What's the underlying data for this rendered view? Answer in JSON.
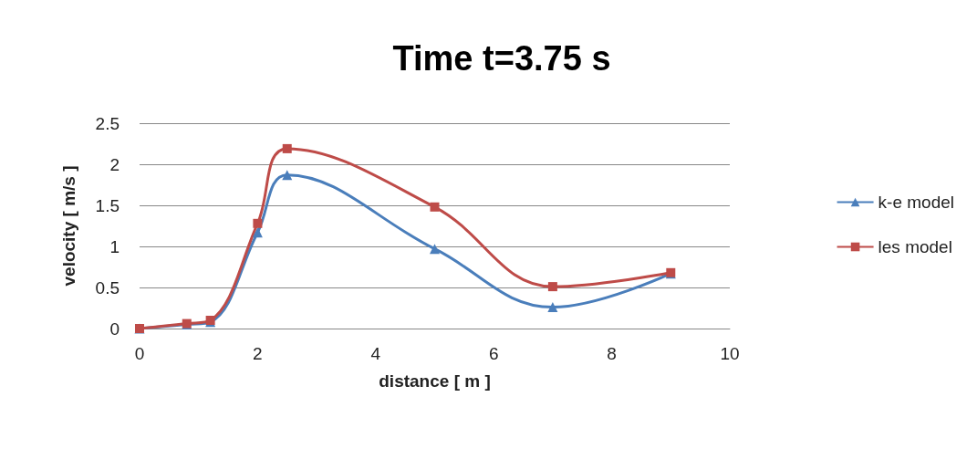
{
  "chart_data": {
    "type": "line",
    "title": "Time t=3.75 s",
    "xlabel": "distance [ m ]",
    "ylabel": "velocity [ m/s ]",
    "x": [
      0,
      0.8,
      1.2,
      2,
      2.5,
      5,
      7,
      9
    ],
    "series": [
      {
        "name": "k-e model",
        "color": "#4a7ebb",
        "marker": "triangle",
        "values": [
          0,
          0.05,
          0.08,
          1.17,
          1.87,
          0.97,
          0.26,
          0.67
        ]
      },
      {
        "name": "les model",
        "color": "#be4b48",
        "marker": "square",
        "values": [
          0,
          0.06,
          0.1,
          1.28,
          2.19,
          1.48,
          0.51,
          0.68
        ]
      }
    ],
    "xlim": [
      0,
      10
    ],
    "xticks": [
      0,
      2,
      4,
      6,
      8,
      10
    ],
    "ylim": [
      0,
      2.5
    ],
    "yticks": [
      0,
      0.5,
      1,
      1.5,
      2,
      2.5
    ],
    "grid": "y",
    "legend": "right",
    "line_style": "solid"
  }
}
